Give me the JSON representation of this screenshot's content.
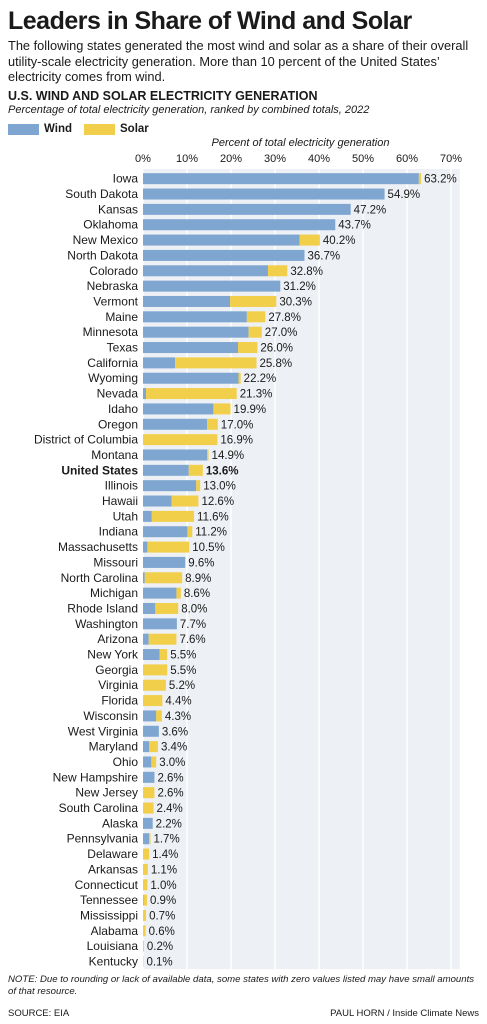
{
  "title": "Leaders in Share of Wind and Solar",
  "intro": "The following states generated the most wind and solar as a share of their overall utility-scale electricity generation. More than 10 percent of the United States’ electricity comes from wind.",
  "heading": "U.S. WIND AND SOLAR ELECTRICITY GENERATION",
  "subheading": "Percentage of total electricity generation, ranked by combined totals, 2022",
  "legend": [
    {
      "label": "Wind",
      "color": "#7fa6d1"
    },
    {
      "label": "Solar",
      "color": "#f2cf4a"
    }
  ],
  "footnote": "NOTE: Due to rounding or lack of available data, some states with zero values listed may have small amounts of that resource.",
  "source": "SOURCE: EIA",
  "credit": "PAUL HORN / Inside Climate News",
  "chart_data": {
    "type": "bar",
    "orientation": "horizontal",
    "stacked": true,
    "x_axis_title": "Percent of total electricity generation",
    "x_ticks": [
      "0%",
      "10%",
      "20%",
      "30%",
      "40%",
      "50%",
      "60%",
      "70%"
    ],
    "xlim": [
      0,
      72
    ],
    "highlight": "United States",
    "categories": [
      "Iowa",
      "South Dakota",
      "Kansas",
      "Oklahoma",
      "New Mexico",
      "North Dakota",
      "Colorado",
      "Nebraska",
      "Vermont",
      "Maine",
      "Minnesota",
      "Texas",
      "California",
      "Wyoming",
      "Nevada",
      "Idaho",
      "Oregon",
      "District of Columbia",
      "Montana",
      "United States",
      "Illinois",
      "Hawaii",
      "Utah",
      "Indiana",
      "Massachusetts",
      "Missouri",
      "North Carolina",
      "Michigan",
      "Rhode Island",
      "Washington",
      "Arizona",
      "New York",
      "Georgia",
      "Virginia",
      "Florida",
      "Wisconsin",
      "West Virginia",
      "Maryland",
      "Ohio",
      "New Hampshire",
      "New Jersey",
      "South Carolina",
      "Alaska",
      "Pennsylvania",
      "Delaware",
      "Arkansas",
      "Connecticut",
      "Tennessee",
      "Mississippi",
      "Alabama",
      "Louisiana",
      "Kentucky"
    ],
    "totals": [
      "63.2%",
      "54.9%",
      "47.2%",
      "43.7%",
      "40.2%",
      "36.7%",
      "32.8%",
      "31.2%",
      "30.3%",
      "27.8%",
      "27.0%",
      "26.0%",
      "25.8%",
      "22.2%",
      "21.3%",
      "19.9%",
      "17.0%",
      "16.9%",
      "14.9%",
      "13.6%",
      "13.0%",
      "12.6%",
      "11.6%",
      "11.2%",
      "10.5%",
      "9.6%",
      "8.9%",
      "8.6%",
      "8.0%",
      "7.7%",
      "7.6%",
      "5.5%",
      "5.5%",
      "5.2%",
      "4.4%",
      "4.3%",
      "3.6%",
      "3.4%",
      "3.0%",
      "2.6%",
      "2.6%",
      "2.4%",
      "2.2%",
      "1.7%",
      "1.4%",
      "1.1%",
      "1.0%",
      "0.9%",
      "0.7%",
      "0.6%",
      "0.2%",
      "0.1%"
    ],
    "series": [
      {
        "name": "Wind",
        "values": [
          62.7,
          54.9,
          47.2,
          43.7,
          35.6,
          36.7,
          28.4,
          31.2,
          19.8,
          23.6,
          24.0,
          21.6,
          7.3,
          21.7,
          0.7,
          16.0,
          14.6,
          0,
          14.6,
          10.4,
          12.1,
          6.5,
          2.0,
          10.1,
          1.0,
          9.6,
          0.4,
          7.6,
          2.8,
          7.7,
          1.3,
          3.8,
          0,
          0,
          0,
          3.0,
          3.6,
          1.4,
          1.9,
          2.6,
          0,
          0,
          2.2,
          1.4,
          0,
          0,
          0,
          0.1,
          0,
          0,
          0,
          0
        ]
      },
      {
        "name": "Solar",
        "values": [
          0.5,
          0,
          0,
          0,
          4.6,
          0,
          4.4,
          0,
          10.5,
          4.2,
          3.0,
          4.4,
          18.5,
          0.5,
          20.6,
          3.9,
          2.4,
          16.9,
          0.3,
          3.2,
          0.9,
          6.1,
          9.6,
          1.1,
          9.5,
          0,
          8.5,
          1.0,
          5.2,
          0,
          6.3,
          1.7,
          5.5,
          5.2,
          4.4,
          1.3,
          0,
          2.0,
          1.1,
          0,
          2.6,
          2.4,
          0,
          0.3,
          1.4,
          1.1,
          1.0,
          0.8,
          0.7,
          0.6,
          0.2,
          0.1
        ]
      }
    ]
  }
}
